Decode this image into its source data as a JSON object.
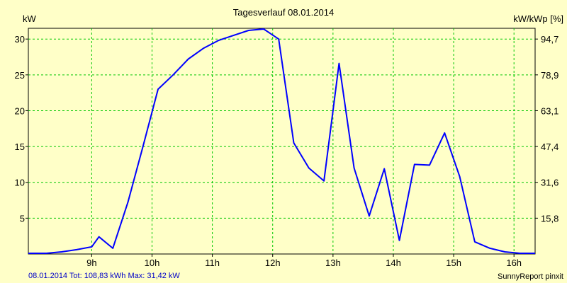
{
  "colors": {
    "background": "#ffffc8",
    "grid": "#00c800",
    "line": "#0000ff",
    "footer_text": "#0000c8"
  },
  "chart_data": {
    "type": "line",
    "title": "Tagesverlauf 08.01.2014",
    "ylabel_left": "kW",
    "ylabel_right": "kW/kWp [%]",
    "xlim": [
      7.95,
      16.35
    ],
    "ylim": [
      0,
      31.5
    ],
    "x_ticks": [
      9,
      10,
      11,
      12,
      13,
      14,
      15,
      16
    ],
    "x_tick_labels": [
      "9h",
      "10h",
      "11h",
      "12h",
      "13h",
      "14h",
      "15h",
      "16h"
    ],
    "y_ticks_left": [
      5,
      10,
      15,
      20,
      25,
      30
    ],
    "y_tick_labels_left": [
      "5",
      "10",
      "15",
      "20",
      "25",
      "30"
    ],
    "y_ticks_right": [
      5,
      10,
      15,
      20,
      25,
      30
    ],
    "y_tick_labels_right": [
      "15,8",
      "31,6",
      "47,4",
      "63,1",
      "78,9",
      "94,7"
    ],
    "grid": true,
    "series": [
      {
        "x": [
          7.95,
          8.25,
          8.5,
          8.75,
          9.0,
          9.12,
          9.35,
          9.6,
          9.85,
          10.1,
          10.35,
          10.6,
          10.85,
          11.1,
          11.35,
          11.6,
          11.85,
          12.1,
          12.35,
          12.6,
          12.85,
          13.1,
          13.35,
          13.6,
          13.85,
          14.1,
          14.35,
          14.6,
          14.85,
          15.1,
          15.35,
          15.6,
          15.85,
          16.1,
          16.35
        ],
        "y": [
          0.1,
          0.1,
          0.3,
          0.6,
          1.0,
          2.4,
          0.8,
          7.2,
          15.0,
          23.0,
          25.0,
          27.2,
          28.7,
          29.8,
          30.5,
          31.2,
          31.4,
          30.0,
          15.5,
          12.0,
          10.2,
          26.6,
          12.0,
          5.3,
          11.9,
          1.9,
          12.5,
          12.4,
          16.9,
          10.8,
          1.7,
          0.8,
          0.3,
          0.1,
          0.1
        ]
      }
    ]
  },
  "footer": {
    "summary": "08.01.2014 Tot: 108,83 kWh Max: 31,42 kW",
    "credit": "SunnyReport pinxit"
  }
}
